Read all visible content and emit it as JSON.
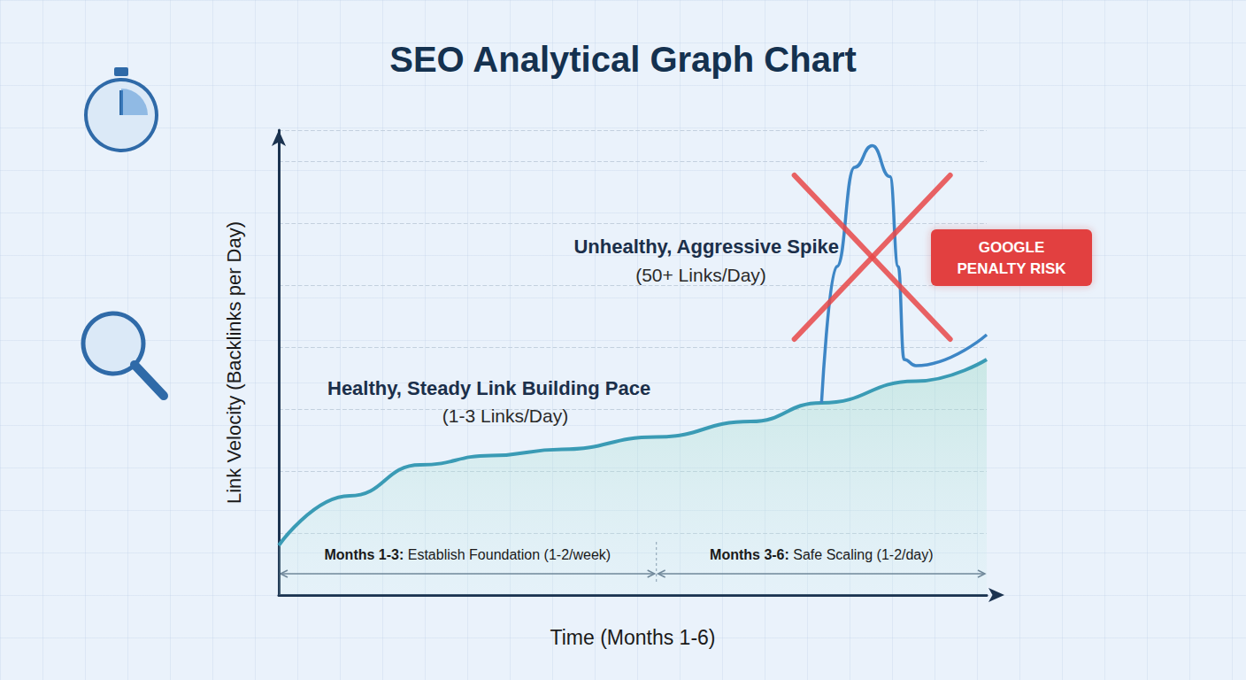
{
  "chart_data": {
    "type": "line",
    "title": "SEO Analytical Graph Chart",
    "x_label": "Time (Months 1-6)",
    "y_label": "Link Velocity (Backlinks per Day)",
    "xlim": [
      0,
      6
    ],
    "ylim": [
      0,
      7.5
    ],
    "yticks": [
      0,
      1,
      2,
      3,
      4,
      5,
      6,
      7
    ],
    "grid": true,
    "tick_labels": false,
    "series": [
      {
        "name": "Healthy, Steady Link Building Pace",
        "note": "(1-3 Links/Day)",
        "type": "area",
        "color": "#3a9bb5",
        "x": [
          0,
          0.6,
          1.2,
          1.8,
          2.4,
          3.2,
          4.0,
          4.6,
          5.4,
          6.0
        ],
        "values": [
          0.8,
          1.6,
          2.1,
          2.25,
          2.35,
          2.55,
          2.8,
          3.1,
          3.45,
          3.8
        ]
      },
      {
        "name": "Unhealthy, Aggressive Spike",
        "note": "(50+ Links/Day)",
        "type": "line",
        "color": "#3d86c6",
        "x": [
          4.6,
          4.73,
          4.88,
          5.03,
          5.18,
          5.25,
          5.3,
          5.4,
          6.0
        ],
        "values": [
          3.1,
          5.3,
          6.9,
          7.25,
          6.75,
          5.3,
          3.8,
          3.7,
          4.2
        ]
      }
    ],
    "badge": "GOOGLE PENALTY RISK",
    "phases": [
      {
        "label": "Months 1-3: Establish Foundation (1-2/week)",
        "start": 0,
        "end": 3.2
      },
      {
        "label": "Months 3-6: Safe Scaling (1-2/day)",
        "start": 3.2,
        "end": 6
      }
    ]
  }
}
